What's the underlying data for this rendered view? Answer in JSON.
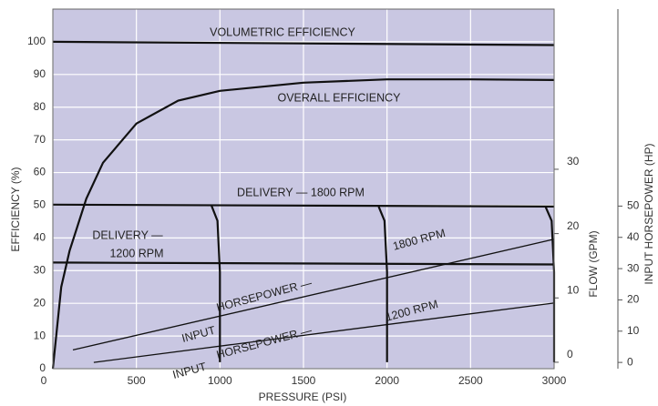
{
  "chart_data": {
    "type": "line",
    "xlabel": "PRESSURE (PSI)",
    "ylabel": "EFFICIENCY (%)",
    "y2label": "FLOW (GPM)",
    "y3label": "INPUT HORSEPOWER (HP)",
    "xlim": [
      0,
      3000
    ],
    "xticks": [
      0,
      500,
      1000,
      1500,
      2000,
      2500,
      3000
    ],
    "ylim": [
      0,
      110
    ],
    "yticks": [
      0,
      10,
      20,
      30,
      40,
      50,
      60,
      70,
      80,
      90,
      100
    ],
    "y2lim": [
      -1,
      54.9
    ],
    "y2ticks": [
      0,
      10,
      20,
      30
    ],
    "y3lim": [
      -2,
      113
    ],
    "y3ticks": [
      0,
      10,
      20,
      30,
      40,
      50
    ],
    "grid": true,
    "background": "#c9c7e2",
    "color": "#111111",
    "series": [
      {
        "x": [
          0,
          3000
        ],
        "values": [
          100,
          99
        ]
      },
      {
        "x": [
          0,
          50,
          100,
          200,
          300,
          500,
          750,
          1000,
          1500,
          2000,
          2500,
          3000
        ],
        "values": [
          0,
          25,
          36,
          52,
          63,
          75,
          82,
          85,
          87.5,
          88.5,
          88.5,
          88.3
        ]
      },
      {
        "axis": "y2",
        "x": [
          0,
          3000
        ],
        "values": [
          24.5,
          24.2
        ]
      },
      {
        "axis": "y2",
        "x": [
          0,
          3000
        ],
        "values": [
          15.5,
          15.2
        ]
      },
      {
        "axis": "y2",
        "x": [
          950,
          985,
          1000,
          1000
        ],
        "values": [
          24.3,
          22,
          14,
          0
        ]
      },
      {
        "axis": "y2",
        "x": [
          1950,
          1985,
          2000,
          2000
        ],
        "values": [
          24.2,
          22,
          14,
          0
        ]
      },
      {
        "axis": "y2",
        "x": [
          2950,
          2985,
          3000,
          3000
        ],
        "values": [
          24.1,
          22,
          14,
          0
        ]
      },
      {
        "axis": "y3",
        "x": [
          120,
          3000
        ],
        "values": [
          4,
          39.4
        ]
      },
      {
        "axis": "y3",
        "x": [
          245,
          3000
        ],
        "values": [
          0,
          19
        ]
      }
    ],
    "annotations": [
      "VOLUMETRIC EFFICIENCY",
      "OVERALL EFFICIENCY",
      "DELIVERY — 1800 RPM",
      "DELIVERY —",
      "1200 RPM",
      "INPUT",
      "HORSEPOWER —",
      "1800 RPM",
      "INPUT",
      "HORSEPOWER —",
      "1200 RPM"
    ]
  }
}
